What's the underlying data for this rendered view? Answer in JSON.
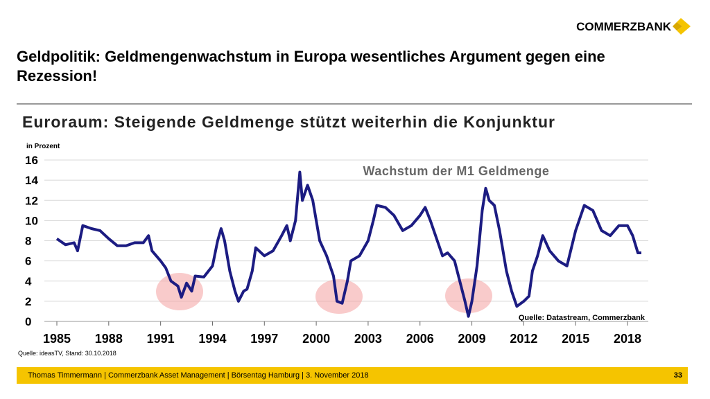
{
  "header": {
    "title": "Geldpolitik: Geldmengenwachstum in Europa wesentliches Argument gegen eine Rezession!",
    "logo": "COMMERZBANK"
  },
  "chart_data": {
    "type": "line",
    "title": "Euroraum: Steigende Geldmenge stützt weiterhin die Konjunktur",
    "subtitle": "Wachstum der M1 Geldmenge",
    "y_label": "in Prozent",
    "annotation": "Quelle: Datastream, Commerzbank",
    "color": "#1c1c82",
    "x": [
      1985.0,
      1985.5,
      1986.0,
      1986.2,
      1986.5,
      1987.0,
      1987.5,
      1988.0,
      1988.5,
      1989.0,
      1989.5,
      1990.0,
      1990.3,
      1990.5,
      1991.0,
      1991.3,
      1991.6,
      1992.0,
      1992.2,
      1992.5,
      1992.8,
      1993.0,
      1993.5,
      1994.0,
      1994.3,
      1994.5,
      1994.7,
      1995.0,
      1995.3,
      1995.5,
      1995.8,
      1996.0,
      1996.3,
      1996.5,
      1997.0,
      1997.5,
      1998.0,
      1998.3,
      1998.5,
      1998.8,
      1999.05,
      1999.2,
      1999.5,
      1999.8,
      2000.2,
      2000.6,
      2001.0,
      2001.2,
      2001.5,
      2001.8,
      2002.0,
      2002.5,
      2003.0,
      2003.3,
      2003.5,
      2004.0,
      2004.5,
      2005.0,
      2005.5,
      2006.0,
      2006.3,
      2006.6,
      2007.0,
      2007.3,
      2007.6,
      2008.0,
      2008.3,
      2008.6,
      2008.8,
      2009.0,
      2009.3,
      2009.6,
      2009.8,
      2010.0,
      2010.3,
      2010.6,
      2011.0,
      2011.3,
      2011.6,
      2012.0,
      2012.3,
      2012.5,
      2012.8,
      2013.1,
      2013.5,
      2014.0,
      2014.5,
      2015.0,
      2015.5,
      2016.0,
      2016.5,
      2017.0,
      2017.5,
      2018.0,
      2018.3,
      2018.6,
      2018.8
    ],
    "values": [
      8.2,
      7.6,
      7.8,
      7.0,
      9.5,
      9.2,
      9.0,
      8.2,
      7.5,
      7.5,
      7.8,
      7.8,
      8.5,
      7.0,
      6.0,
      5.3,
      4.0,
      3.5,
      2.4,
      3.8,
      3.0,
      4.5,
      4.4,
      5.5,
      8.0,
      9.2,
      8.0,
      5.0,
      3.0,
      2.0,
      3.0,
      3.2,
      5.0,
      7.3,
      6.5,
      7.0,
      8.5,
      9.5,
      8.0,
      10.0,
      14.8,
      12.0,
      13.5,
      12.0,
      8.0,
      6.5,
      4.5,
      2.0,
      1.8,
      4.0,
      6.0,
      6.5,
      8.0,
      10.0,
      11.5,
      11.3,
      10.5,
      9.0,
      9.5,
      10.5,
      11.3,
      10.0,
      8.0,
      6.5,
      6.8,
      6.0,
      4.0,
      2.0,
      0.5,
      2.0,
      5.5,
      11.0,
      13.2,
      12.0,
      11.5,
      9.0,
      5.0,
      3.0,
      1.5,
      2.0,
      2.5,
      5.0,
      6.5,
      8.5,
      7.0,
      6.0,
      5.5,
      9.0,
      11.5,
      11.0,
      9.0,
      8.5,
      9.5,
      9.5,
      8.5,
      6.8,
      6.8
    ],
    "xlim": [
      1985,
      2019
    ],
    "xticks": [
      1985,
      1988,
      1991,
      1994,
      1997,
      2000,
      2003,
      2006,
      2009,
      2012,
      2015,
      2018
    ],
    "ylim": [
      0,
      16
    ],
    "yticks": [
      0,
      2,
      4,
      6,
      8,
      10,
      12,
      14,
      16
    ],
    "grid": true
  },
  "source_note": "Quelle: ideasTV, Stand: 30.10.2018",
  "footer": {
    "text": "Thomas Timmermann | Commerzbank Asset Management | Börsentag Hamburg | 3. November 2018",
    "page": "33"
  }
}
